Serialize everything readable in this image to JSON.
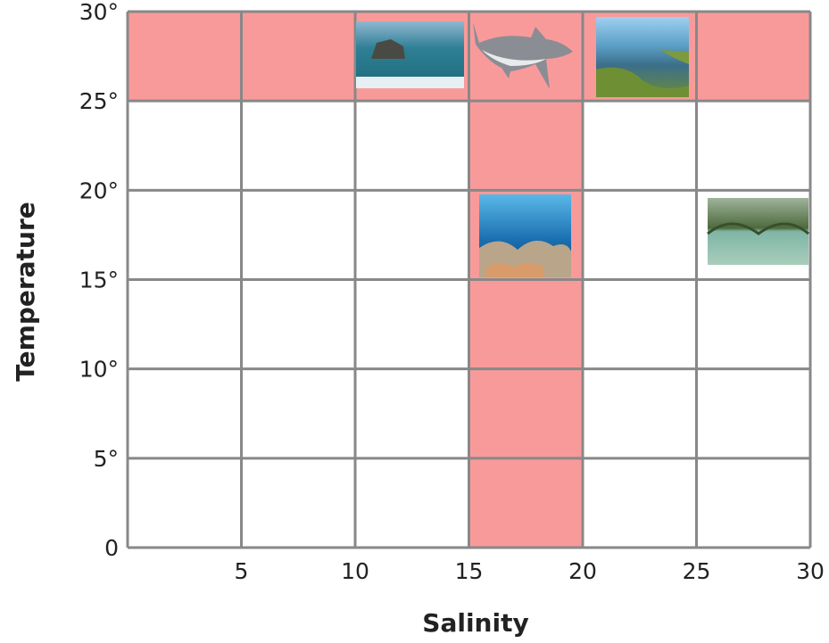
{
  "x_axis": {
    "label": "Salinity",
    "ticks": [
      "5",
      "10",
      "15",
      "20",
      "25",
      "30"
    ]
  },
  "y_axis": {
    "label": "Temperature",
    "ticks": [
      "0",
      "5°",
      "10°",
      "15°",
      "20°",
      "25°",
      "30°"
    ]
  }
}
